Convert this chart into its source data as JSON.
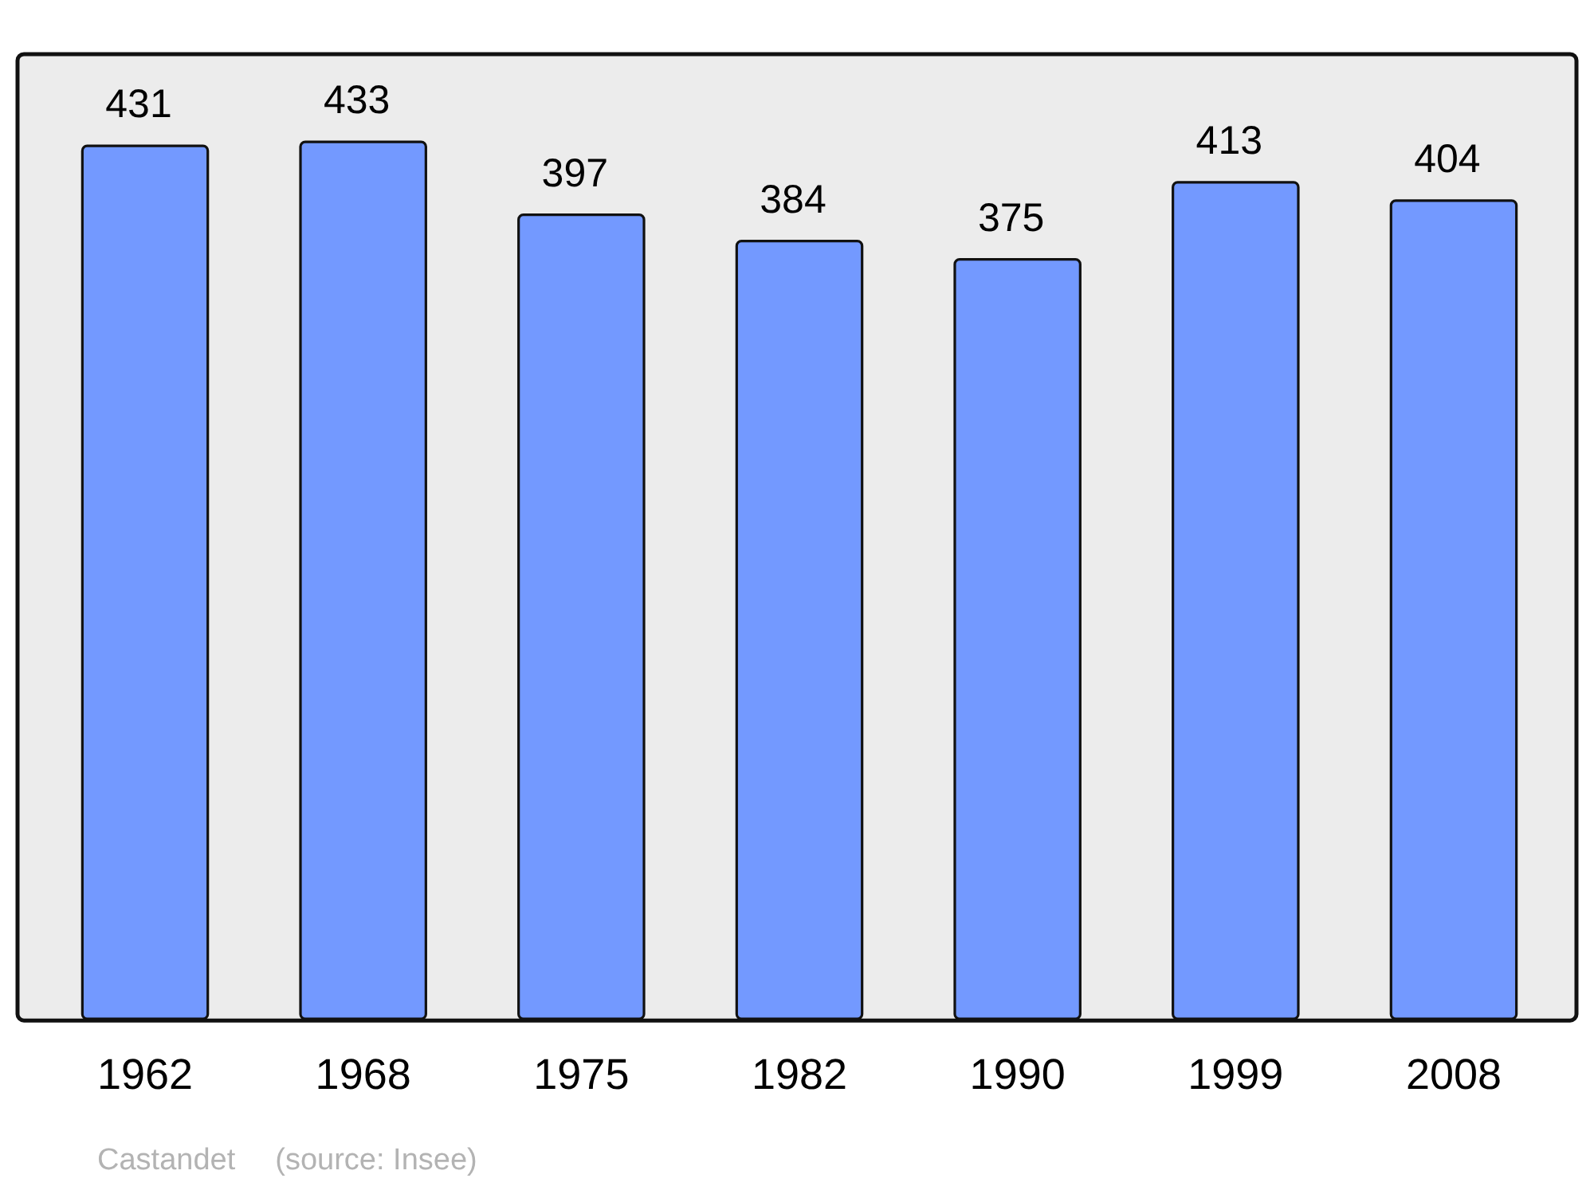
{
  "chart_data": {
    "type": "bar",
    "categories": [
      "1962",
      "1968",
      "1975",
      "1982",
      "1990",
      "1999",
      "2008"
    ],
    "values": [
      431,
      433,
      397,
      384,
      375,
      413,
      404
    ],
    "color": "#7399ff",
    "data_labels": true,
    "annotations": [
      "Castandet",
      "(source: Insee)"
    ]
  }
}
